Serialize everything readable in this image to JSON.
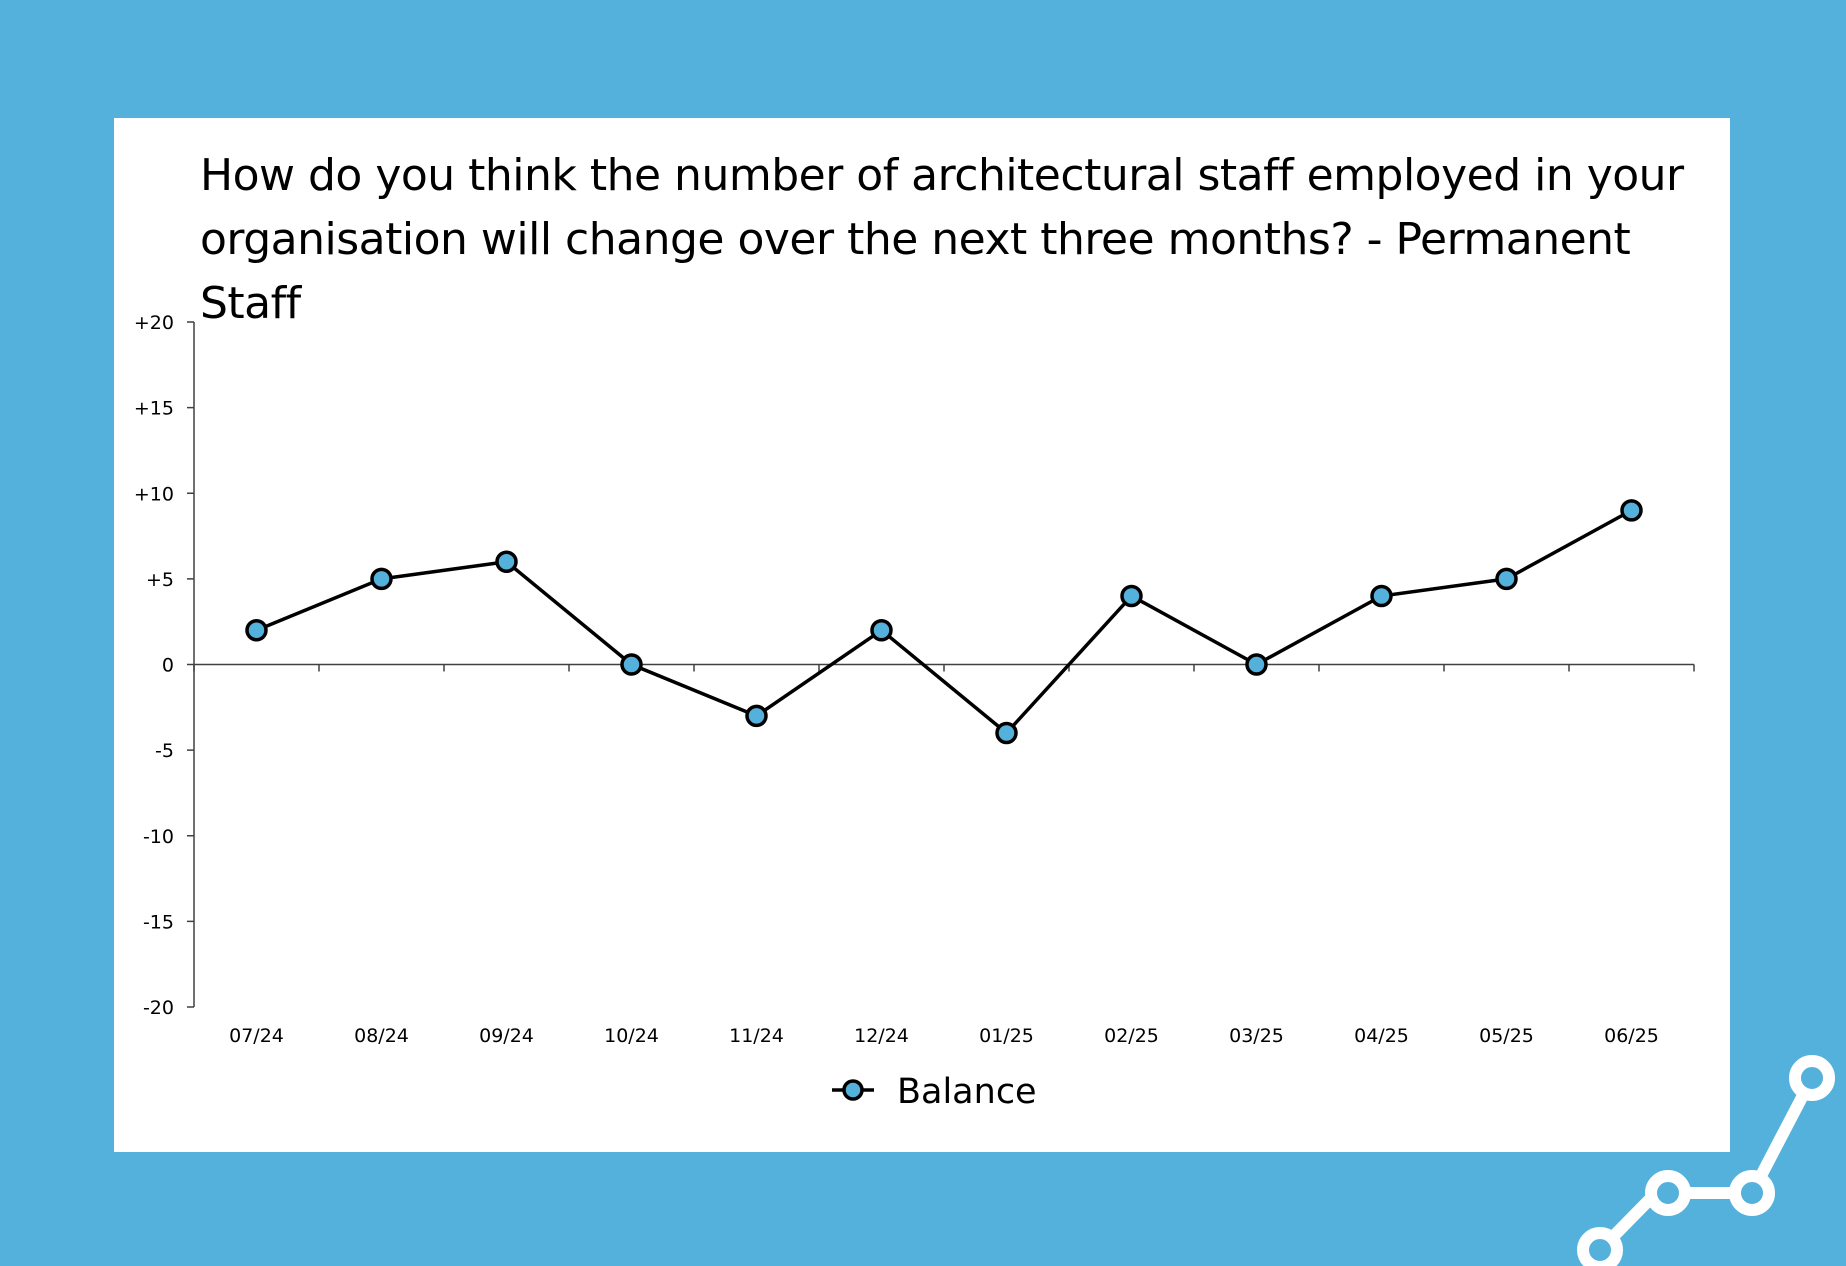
{
  "chart_data": {
    "type": "line",
    "title": "How do you think the number of architectural staff employed in your organisation will change over the next three months? - Permanent Staff",
    "categories": [
      "07/24",
      "08/24",
      "09/24",
      "10/24",
      "11/24",
      "12/24",
      "01/25",
      "02/25",
      "03/25",
      "04/25",
      "05/25",
      "06/25"
    ],
    "series": [
      {
        "name": "Balance",
        "values": [
          2,
          5,
          6,
          0,
          -3,
          2,
          -4,
          4,
          0,
          4,
          5,
          9
        ]
      }
    ],
    "ylim": [
      -20,
      20
    ],
    "yticks": [
      20,
      15,
      10,
      5,
      0,
      -5,
      -10,
      -15,
      -20
    ],
    "ytick_labels": [
      "+20",
      "+15",
      "+10",
      "+5",
      "0",
      "-5",
      "-10",
      "-15",
      "-20"
    ],
    "grid": false,
    "legend_position": "bottom-center",
    "colors": {
      "line": "#000000",
      "marker_fill": "#53b1dc",
      "background": "#53b1dc",
      "card": "#ffffff"
    }
  }
}
